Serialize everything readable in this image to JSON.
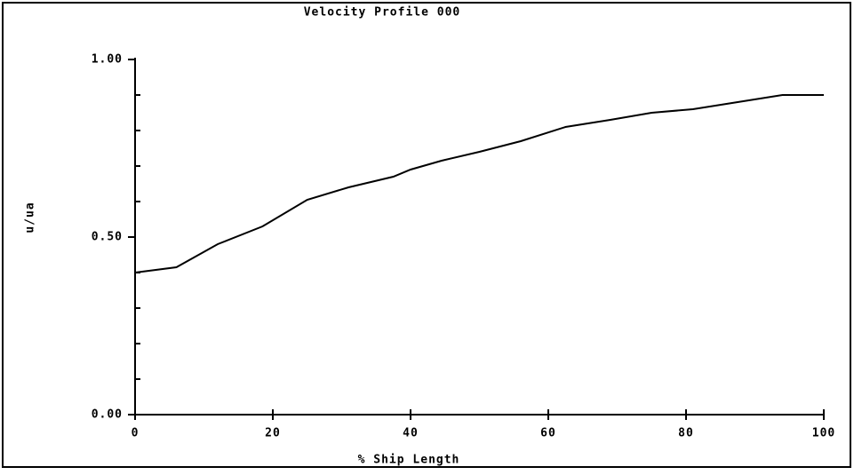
{
  "chart_data": {
    "type": "line",
    "title": "Velocity Profile 000",
    "xlabel": "% Ship Length",
    "ylabel": "u/ua",
    "x": [
      0,
      6,
      12,
      18.5,
      25,
      31,
      37.5,
      40,
      44.5,
      50,
      56,
      62.5,
      69,
      75,
      81,
      87.5,
      94,
      100
    ],
    "series": [
      {
        "name": "u/ua",
        "color": "#000000",
        "values": [
          0.4,
          0.415,
          0.48,
          0.53,
          0.605,
          0.64,
          0.67,
          0.69,
          0.715,
          0.74,
          0.77,
          0.81,
          0.83,
          0.85,
          0.86,
          0.88,
          0.9,
          0.9
        ]
      }
    ],
    "xlim": [
      0,
      100
    ],
    "xticks": [
      0,
      20,
      40,
      60,
      80,
      100
    ],
    "ylim": [
      0,
      1
    ],
    "yticks": [
      {
        "value": 0,
        "label": "0.00"
      },
      {
        "value": 0.5,
        "label": "0.50"
      },
      {
        "value": 1,
        "label": "1.00"
      }
    ],
    "y_minor_ticks": [
      0.1,
      0.2,
      0.3,
      0.4,
      0.6,
      0.7,
      0.8,
      0.9
    ]
  }
}
